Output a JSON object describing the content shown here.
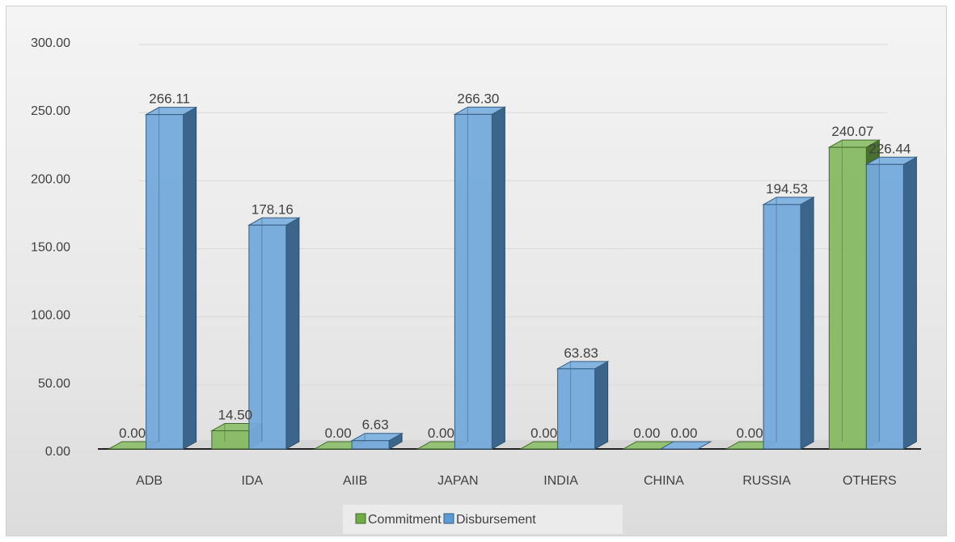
{
  "chart_data": {
    "type": "bar",
    "categories": [
      "ADB",
      "IDA",
      "AIIB",
      "JAPAN",
      "INDIA",
      "CHINA",
      "RUSSIA",
      "OTHERS"
    ],
    "series": [
      {
        "name": "Commitment",
        "color": "#70ad47",
        "values": [
          0.0,
          14.5,
          0.0,
          0.0,
          0.0,
          0.0,
          0.0,
          240.07
        ],
        "labels": [
          "0.00",
          "14.50",
          "0.00",
          "0.00",
          "0.00",
          "0.00",
          "0.00",
          "240.07"
        ]
      },
      {
        "name": "Disbursement",
        "color": "#5b9bd5",
        "values": [
          266.11,
          178.16,
          6.63,
          266.3,
          63.83,
          0.0,
          194.53,
          226.44
        ],
        "labels": [
          "266.11",
          "178.16",
          "6.63",
          "266.30",
          "63.83",
          "0.00",
          "194.53",
          "226.44"
        ]
      }
    ],
    "ylim": [
      0,
      300
    ],
    "yticks": [
      "0.00",
      "50.00",
      "100.00",
      "150.00",
      "200.00",
      "250.00",
      "300.00"
    ],
    "ytick_values": [
      0,
      50,
      100,
      150,
      200,
      250,
      300
    ],
    "grid": true,
    "legend_position": "bottom",
    "style": "3d-column"
  }
}
